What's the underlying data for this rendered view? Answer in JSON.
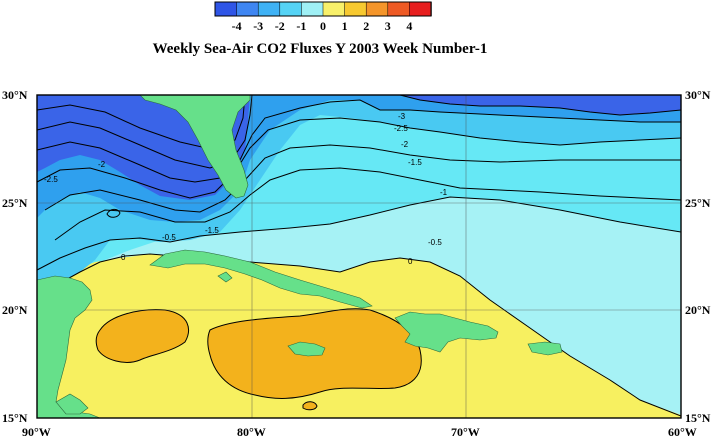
{
  "title": "Weekly Sea-Air CO2 Fluxes Y 2003 Week Number-1",
  "colorbar": {
    "ticks": [
      "-4",
      "-3",
      "-2",
      "-1",
      "0",
      "1",
      "2",
      "3",
      "4"
    ],
    "colors": [
      "#2f55e6",
      "#3f86f2",
      "#3fb2f5",
      "#55d3f5",
      "#9ff0f5",
      "#f8f06a",
      "#f7c930",
      "#f4952a",
      "#ee5a24",
      "#e71e1e"
    ]
  },
  "axes": {
    "lat_labels": [
      "30°N",
      "25°N",
      "20°N",
      "15°N"
    ],
    "lon_labels": [
      "90°W",
      "80°W",
      "70°W",
      "60°W"
    ]
  },
  "contour_labels": [
    "-3",
    "-2.5",
    "-2",
    "-1.5",
    "-1",
    "-0.5",
    "0",
    "-2",
    "-2.5",
    "-1.5",
    "-0.5",
    "0"
  ],
  "colors": {
    "land": "#66e08a",
    "deep_blue": "#3a64e8",
    "blue": "#2fa0ee",
    "light_blue": "#49c9f2",
    "cyan": "#66e8f5",
    "pale_cyan": "#a6f2f5",
    "yellow": "#f7f060",
    "orange": "#f3b21c"
  }
}
